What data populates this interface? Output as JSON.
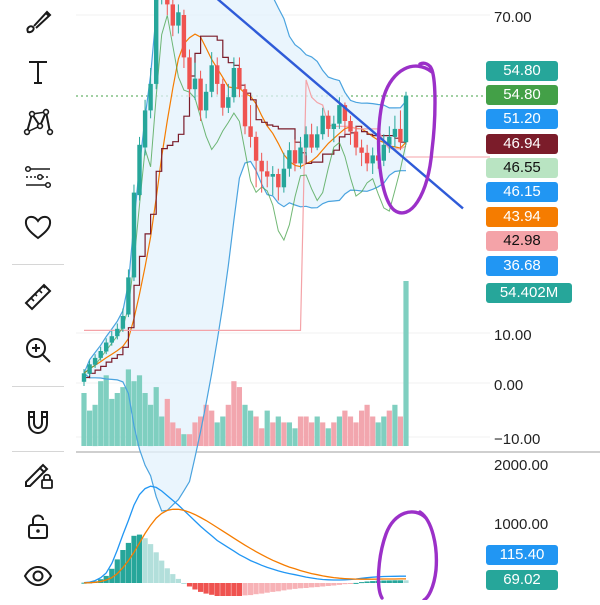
{
  "toolbar": {
    "tools": [
      {
        "name": "brush-tool",
        "icon": "brush-icon"
      },
      {
        "name": "text-tool",
        "icon": "text-icon"
      },
      {
        "name": "pattern-tool",
        "icon": "pattern-icon"
      },
      {
        "name": "prediction-tool",
        "icon": "prediction-icon"
      },
      {
        "name": "favorites-tool",
        "icon": "heart-icon"
      },
      {
        "name": "ruler-tool",
        "icon": "ruler-icon"
      },
      {
        "name": "zoom-in-tool",
        "icon": "zoom-in-icon"
      },
      {
        "name": "magnet-tool",
        "icon": "magnet-icon"
      },
      {
        "name": "lock-drawings-tool",
        "icon": "pencil-lock-icon"
      },
      {
        "name": "lock-tool",
        "icon": "unlock-icon"
      },
      {
        "name": "visibility-tool",
        "icon": "eye-icon"
      }
    ]
  },
  "chart_data": [
    {
      "type": "candlestick",
      "y_ticks": [
        "70.00",
        "10.00",
        "0.00",
        "−10.00"
      ],
      "price_labels": [
        {
          "value": "54.80",
          "color": "#26a69a",
          "text_color": "#ffffff"
        },
        {
          "value": "54.80",
          "color": "#43a047",
          "text_color": "#ffffff"
        },
        {
          "value": "51.20",
          "color": "#2196f3",
          "text_color": "#ffffff"
        },
        {
          "value": "46.94",
          "color": "#7b1c2a",
          "text_color": "#ffffff"
        },
        {
          "value": "46.55",
          "color": "#b9e4c2",
          "text_color": "#111111"
        },
        {
          "value": "46.15",
          "color": "#2196f3",
          "text_color": "#ffffff"
        },
        {
          "value": "43.94",
          "color": "#f57c00",
          "text_color": "#ffffff"
        },
        {
          "value": "42.98",
          "color": "#f4a3a8",
          "text_color": "#111111"
        },
        {
          "value": "36.68",
          "color": "#2196f3",
          "text_color": "#ffffff"
        },
        {
          "value": "54.402M",
          "color": "#26a69a",
          "text_color": "#ffffff"
        }
      ],
      "candles": [
        {
          "o": 0.8,
          "c": 2.4,
          "h": 3.2,
          "l": 0.0
        },
        {
          "o": 2.3,
          "c": 4.1,
          "h": 4.8,
          "l": 1.9
        },
        {
          "o": 4.0,
          "c": 5.3,
          "h": 6.0,
          "l": 3.4
        },
        {
          "o": 5.3,
          "c": 6.6,
          "h": 7.4,
          "l": 4.8
        },
        {
          "o": 6.5,
          "c": 8.2,
          "h": 9.0,
          "l": 6.0
        },
        {
          "o": 8.2,
          "c": 9.4,
          "h": 10.4,
          "l": 7.6
        },
        {
          "o": 9.4,
          "c": 10.8,
          "h": 11.8,
          "l": 8.8
        },
        {
          "o": 10.8,
          "c": 13.2,
          "h": 14.6,
          "l": 10.2
        },
        {
          "o": 13.5,
          "c": 20.5,
          "h": 22.0,
          "l": 13.0
        },
        {
          "o": 20.5,
          "c": 36.5,
          "h": 38.0,
          "l": 19.8
        },
        {
          "o": 36.0,
          "c": 45.5,
          "h": 47.0,
          "l": 35.0
        },
        {
          "o": 45.0,
          "c": 52.0,
          "h": 54.0,
          "l": 43.5
        },
        {
          "o": 52.0,
          "c": 57.0,
          "h": 60.0,
          "l": 50.5
        },
        {
          "o": 57.0,
          "c": 74.0,
          "h": 75.0,
          "l": 56.0
        },
        {
          "o": 73.5,
          "c": 80.0,
          "h": 82.0,
          "l": 72.0
        },
        {
          "o": 79.0,
          "c": 72.0,
          "h": 80.5,
          "l": 70.0
        },
        {
          "o": 72.0,
          "c": 68.0,
          "h": 74.0,
          "l": 66.0
        },
        {
          "o": 68.0,
          "c": 70.5,
          "h": 72.0,
          "l": 66.5
        },
        {
          "o": 70.0,
          "c": 62.0,
          "h": 71.0,
          "l": 60.0
        },
        {
          "o": 62.0,
          "c": 56.0,
          "h": 63.5,
          "l": 54.5
        },
        {
          "o": 56.0,
          "c": 58.0,
          "h": 61.0,
          "l": 54.0
        },
        {
          "o": 58.0,
          "c": 52.0,
          "h": 59.5,
          "l": 50.0
        },
        {
          "o": 52.0,
          "c": 55.5,
          "h": 57.0,
          "l": 50.5
        },
        {
          "o": 55.5,
          "c": 60.5,
          "h": 63.0,
          "l": 54.5
        },
        {
          "o": 60.5,
          "c": 57.0,
          "h": 62.0,
          "l": 55.0
        },
        {
          "o": 57.0,
          "c": 52.5,
          "h": 58.0,
          "l": 51.0
        },
        {
          "o": 52.5,
          "c": 54.5,
          "h": 57.0,
          "l": 51.5
        },
        {
          "o": 54.5,
          "c": 60.0,
          "h": 62.0,
          "l": 53.5
        },
        {
          "o": 60.0,
          "c": 56.0,
          "h": 62.0,
          "l": 54.5
        },
        {
          "o": 56.0,
          "c": 49.0,
          "h": 57.0,
          "l": 47.5
        },
        {
          "o": 49.0,
          "c": 47.0,
          "h": 53.0,
          "l": 45.0
        },
        {
          "o": 47.0,
          "c": 42.5,
          "h": 48.0,
          "l": 37.5
        },
        {
          "o": 42.5,
          "c": 40.5,
          "h": 44.0,
          "l": 36.5
        },
        {
          "o": 40.5,
          "c": 39.5,
          "h": 42.5,
          "l": 37.5
        },
        {
          "o": 39.5,
          "c": 40.0,
          "h": 41.5,
          "l": 36.0
        },
        {
          "o": 40.0,
          "c": 37.5,
          "h": 41.0,
          "l": 35.0
        },
        {
          "o": 37.5,
          "c": 41.0,
          "h": 44.0,
          "l": 36.5
        },
        {
          "o": 41.0,
          "c": 44.5,
          "h": 46.0,
          "l": 39.5
        },
        {
          "o": 44.5,
          "c": 42.0,
          "h": 46.5,
          "l": 40.5
        },
        {
          "o": 42.0,
          "c": 45.0,
          "h": 47.0,
          "l": 41.0
        },
        {
          "o": 45.0,
          "c": 47.5,
          "h": 49.0,
          "l": 43.5
        },
        {
          "o": 47.5,
          "c": 45.0,
          "h": 49.5,
          "l": 44.0
        },
        {
          "o": 45.0,
          "c": 47.5,
          "h": 49.0,
          "l": 44.5
        },
        {
          "o": 47.5,
          "c": 51.0,
          "h": 52.5,
          "l": 46.5
        },
        {
          "o": 51.0,
          "c": 48.5,
          "h": 52.0,
          "l": 47.0
        },
        {
          "o": 48.5,
          "c": 49.5,
          "h": 51.0,
          "l": 46.0
        },
        {
          "o": 49.5,
          "c": 53.0,
          "h": 54.5,
          "l": 48.5
        },
        {
          "o": 53.0,
          "c": 50.0,
          "h": 53.5,
          "l": 47.5
        },
        {
          "o": 50.0,
          "c": 48.0,
          "h": 51.0,
          "l": 45.5
        },
        {
          "o": 48.0,
          "c": 45.0,
          "h": 49.0,
          "l": 43.5
        },
        {
          "o": 45.0,
          "c": 44.0,
          "h": 46.5,
          "l": 41.5
        },
        {
          "o": 44.0,
          "c": 42.0,
          "h": 45.5,
          "l": 40.5
        },
        {
          "o": 42.0,
          "c": 43.5,
          "h": 45.0,
          "l": 40.0
        },
        {
          "o": 43.5,
          "c": 42.5,
          "h": 46.0,
          "l": 41.0
        },
        {
          "o": 42.5,
          "c": 45.5,
          "h": 47.5,
          "l": 41.5
        },
        {
          "o": 45.5,
          "c": 47.0,
          "h": 49.0,
          "l": 44.0
        },
        {
          "o": 47.0,
          "c": 48.5,
          "h": 51.0,
          "l": 45.0
        },
        {
          "o": 48.5,
          "c": 46.0,
          "h": 52.0,
          "l": 44.5
        },
        {
          "o": 46.0,
          "c": 54.8,
          "h": 55.5,
          "l": 45.5
        }
      ],
      "volume": [
        {
          "v": 9,
          "up": true
        },
        {
          "v": 6,
          "up": true
        },
        {
          "v": 7,
          "up": true
        },
        {
          "v": 11,
          "up": true
        },
        {
          "v": 12,
          "up": true
        },
        {
          "v": 8,
          "up": true
        },
        {
          "v": 9,
          "up": true
        },
        {
          "v": 10,
          "up": true
        },
        {
          "v": 13,
          "up": true
        },
        {
          "v": 11,
          "up": true
        },
        {
          "v": 12,
          "up": true
        },
        {
          "v": 9,
          "up": true
        },
        {
          "v": 7,
          "up": true
        },
        {
          "v": 10,
          "up": true
        },
        {
          "v": 5,
          "up": true
        },
        {
          "v": 8,
          "up": false
        },
        {
          "v": 4,
          "up": false
        },
        {
          "v": 3,
          "up": false
        },
        {
          "v": 2,
          "up": true
        },
        {
          "v": 2,
          "up": false
        },
        {
          "v": 4,
          "up": false
        },
        {
          "v": 5,
          "up": false
        },
        {
          "v": 7,
          "up": false
        },
        {
          "v": 6,
          "up": false
        },
        {
          "v": 4,
          "up": true
        },
        {
          "v": 5,
          "up": true
        },
        {
          "v": 7,
          "up": false
        },
        {
          "v": 11,
          "up": false
        },
        {
          "v": 10,
          "up": false
        },
        {
          "v": 7,
          "up": true
        },
        {
          "v": 6,
          "up": true
        },
        {
          "v": 5,
          "up": false
        },
        {
          "v": 3,
          "up": false
        },
        {
          "v": 6,
          "up": true
        },
        {
          "v": 4,
          "up": false
        },
        {
          "v": 5,
          "up": true
        },
        {
          "v": 4,
          "up": false
        },
        {
          "v": 4,
          "up": true
        },
        {
          "v": 3,
          "up": true
        },
        {
          "v": 5,
          "up": false
        },
        {
          "v": 5,
          "up": false
        },
        {
          "v": 4,
          "up": false
        },
        {
          "v": 5,
          "up": true
        },
        {
          "v": 4,
          "up": false
        },
        {
          "v": 3,
          "up": true
        },
        {
          "v": 4,
          "up": false
        },
        {
          "v": 5,
          "up": true
        },
        {
          "v": 6,
          "up": false
        },
        {
          "v": 5,
          "up": false
        },
        {
          "v": 4,
          "up": false
        },
        {
          "v": 6,
          "up": false
        },
        {
          "v": 7,
          "up": false
        },
        {
          "v": 5,
          "up": false
        },
        {
          "v": 4,
          "up": true
        },
        {
          "v": 5,
          "up": true
        },
        {
          "v": 6,
          "up": false
        },
        {
          "v": 7,
          "up": true
        },
        {
          "v": 5,
          "up": false
        },
        {
          "v": 28,
          "up": true
        }
      ],
      "colors": {
        "up": "#26a69a",
        "down": "#ef5350",
        "vol_up": "#7fcfc0",
        "vol_down": "#f2a6ae",
        "bb_band": "#4aa3df",
        "trend": "#2f5bd8",
        "annotation": "#9b30c8",
        "ma_orange": "#f57c00",
        "ma_maroon": "#7b1c2a",
        "ma_pink": "#f4a3a8",
        "ma_green": "#43a047"
      }
    },
    {
      "type": "macd",
      "y_ticks": [
        "2000.00",
        "1000.00"
      ],
      "price_labels": [
        {
          "value": "115.40",
          "color": "#2196f3",
          "text_color": "#ffffff"
        },
        {
          "value": "69.02",
          "color": "#26a69a",
          "text_color": "#ffffff"
        }
      ],
      "macd": [
        5,
        15,
        40,
        90,
        170,
        330,
        560,
        820,
        1060,
        1320,
        1500,
        1600,
        1640,
        1620,
        1560,
        1480,
        1400,
        1320,
        1230,
        1140,
        1050,
        960,
        880,
        800,
        720,
        660,
        600,
        540,
        480,
        430,
        380,
        340,
        300,
        265,
        235,
        205,
        180,
        160,
        140,
        120,
        100,
        85,
        70,
        60,
        55,
        50,
        50,
        55,
        60,
        68,
        80,
        90,
        98,
        105,
        110,
        112,
        114,
        115.4,
        115.4
      ],
      "signal": [
        2,
        5,
        12,
        25,
        50,
        90,
        160,
        260,
        380,
        520,
        680,
        840,
        980,
        1100,
        1180,
        1230,
        1250,
        1250,
        1230,
        1200,
        1160,
        1110,
        1060,
        1000,
        940,
        880,
        820,
        760,
        700,
        640,
        585,
        530,
        480,
        430,
        385,
        345,
        305,
        270,
        240,
        210,
        185,
        160,
        140,
        120,
        105,
        92,
        82,
        75,
        70,
        66,
        64,
        64,
        65,
        66,
        67,
        68,
        68.5,
        69,
        69.02
      ],
      "histogram": [
        5,
        10,
        28,
        65,
        120,
        240,
        400,
        560,
        680,
        800,
        820,
        760,
        660,
        520,
        380,
        250,
        150,
        70,
        0,
        -60,
        -110,
        -150,
        -180,
        -200,
        -220,
        -220,
        -220,
        -220,
        -220,
        -210,
        -205,
        -190,
        -180,
        -165,
        -150,
        -140,
        -125,
        -110,
        -100,
        -90,
        -85,
        -75,
        -70,
        -60,
        -50,
        -42,
        -32,
        -20,
        -10,
        2,
        16,
        26,
        33,
        39,
        43,
        44,
        45.5,
        46.4,
        46.38
      ]
    }
  ]
}
